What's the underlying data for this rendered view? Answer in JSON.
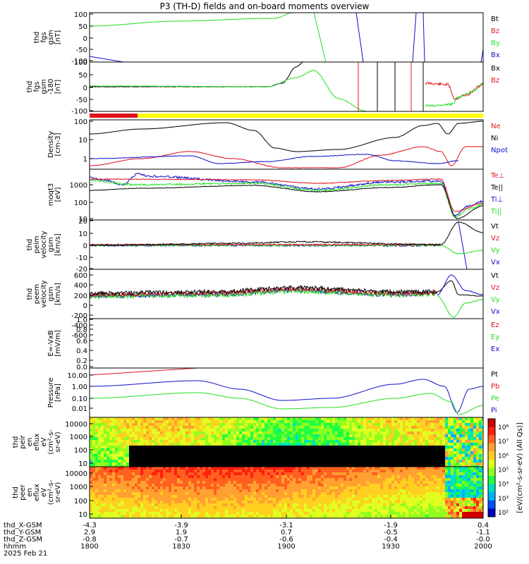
{
  "title": "P3 (TH-D) fields and on-board moments overview",
  "date_label": "2025 Feb 21",
  "colors": {
    "black": "#000000",
    "red": "#e0141e",
    "green": "#20e020",
    "blue": "#1010c8",
    "yellow": "#ffff00"
  },
  "x_axis": {
    "tick_times": [
      "1800",
      "1830",
      "1900",
      "1930",
      "2000"
    ],
    "rows": [
      {
        "label": "thd_X-GSM",
        "values": [
          "-4.3",
          "-3.9",
          "-3.1",
          "-1.9",
          "0.4"
        ]
      },
      {
        "label": "thd_Y-GSM",
        "values": [
          "2.9",
          "1.9",
          "0.7",
          "-0.5",
          "-1.1"
        ]
      },
      {
        "label": "thd_Z-GSM",
        "values": [
          "-0.8",
          "-0.7",
          "-0.6",
          "-0.4",
          "-0.0"
        ]
      },
      {
        "label": "hhmm",
        "values": [
          "1800",
          "1830",
          "1900",
          "1930",
          "2000"
        ]
      }
    ]
  },
  "panels": [
    {
      "ylabel": [
        "thd",
        "fgs",
        "gsm",
        "[nT]"
      ],
      "ticks": [
        "100",
        "50",
        "0",
        "-50",
        "-100"
      ],
      "legend": [
        {
          "text": "Bt",
          "color": "black"
        },
        {
          "text": "Bz",
          "color": "red"
        },
        {
          "text": "By",
          "color": "green"
        },
        {
          "text": "Bx",
          "color": "blue"
        }
      ]
    },
    {
      "ylabel": [
        "thd",
        "fgs",
        "gsm",
        "-180",
        "[nT]"
      ],
      "ticks": [
        "100",
        "50",
        "0",
        "-50",
        "-100"
      ],
      "legend": [
        {
          "text": "Bx",
          "color": "black"
        },
        {
          "text": "Bz",
          "color": "red"
        }
      ]
    },
    {
      "ylabel": [
        "Density",
        "[cm-3]"
      ],
      "ticks": [
        "100",
        "10",
        "1"
      ],
      "legend": [
        {
          "text": "Ne",
          "color": "red"
        },
        {
          "text": "Ni",
          "color": "black"
        },
        {
          "text": "Npot",
          "color": "blue"
        }
      ]
    },
    {
      "ylabel": [
        "moqt3",
        "[eV]"
      ],
      "ticks": [
        "1000",
        "100",
        "10"
      ],
      "legend": [
        {
          "text": "Te⊥",
          "color": "red"
        },
        {
          "text": "Te||",
          "color": "black"
        },
        {
          "text": "Ti⊥",
          "color": "blue"
        },
        {
          "text": "Ti||",
          "color": "green"
        }
      ]
    },
    {
      "ylabel": [
        "thd",
        "peim",
        "velocity",
        "gsm",
        "[km/s]"
      ],
      "ticks": [
        "20",
        "10",
        "0",
        "-10",
        "-20"
      ],
      "legend": [
        {
          "text": "Vt",
          "color": "black"
        },
        {
          "text": "Vz",
          "color": "red"
        },
        {
          "text": "Vy",
          "color": "green"
        },
        {
          "text": "Vx",
          "color": "blue"
        }
      ]
    },
    {
      "ylabel": [
        "thd",
        "peem",
        "velocity",
        "gsm",
        "[km/s]"
      ],
      "ticks": [
        "600",
        "400",
        "200",
        "0",
        "-200",
        "-400",
        "-600"
      ],
      "legend": [
        {
          "text": "Vt",
          "color": "black"
        },
        {
          "text": "Vz",
          "color": "red"
        },
        {
          "text": "Vy",
          "color": "green"
        },
        {
          "text": "Vx",
          "color": "blue"
        }
      ]
    },
    {
      "ylabel": [
        "E=-VxB",
        "[mV/m]"
      ],
      "ticks": [
        "1.0",
        "0.8",
        "0.6",
        "0.4",
        "0.2",
        "0.0"
      ],
      "legend": [
        {
          "text": "Ez",
          "color": "red"
        },
        {
          "text": "Ey",
          "color": "green"
        },
        {
          "text": "Ex",
          "color": "blue"
        }
      ]
    },
    {
      "ylabel": [
        "Pressure",
        "[nPa]"
      ],
      "ticks": [
        "10.00",
        "1.00",
        "0.10",
        "0.01"
      ],
      "legend": [
        {
          "text": "Pt",
          "color": "black"
        },
        {
          "text": "Pb",
          "color": "red"
        },
        {
          "text": "Pe",
          "color": "green"
        },
        {
          "text": "Pi",
          "color": "blue"
        }
      ]
    },
    {
      "ylabel": [
        "thd",
        "peir",
        "en",
        "eflux",
        "eV",
        "(cm²-s-",
        "sr-eV)"
      ],
      "ticks": [
        "10000",
        "1000",
        "100",
        "10"
      ],
      "legend": []
    },
    {
      "ylabel": [
        "thd",
        "peer",
        "en",
        "eflux",
        "eV",
        "(cm²-s-",
        "sr-eV)"
      ],
      "ticks": [
        "10000",
        "1000",
        "100",
        "10"
      ],
      "legend": []
    }
  ],
  "colorbar": {
    "label": "[eV/(cm²-s-sr-eV) (All Qs)]",
    "ticks": [
      "10⁸",
      "10⁷",
      "10⁶",
      "10⁵",
      "10⁴",
      "10³",
      "10²"
    ]
  },
  "chart_data": {
    "type": "line",
    "title": "P3 (TH-D) fields and on-board moments overview",
    "x": [
      "1800",
      "1830",
      "1900",
      "1930",
      "2000"
    ],
    "x_range": [
      "1800",
      "2000"
    ],
    "panels": [
      {
        "series": [
          {
            "name": "By",
            "values": [
              46,
              60,
              120,
              null,
              null
            ]
          },
          {
            "name": "Bx",
            "values": [
              -80,
              -120,
              -200,
              200,
              -100
            ]
          }
        ],
        "ylim": [
          -100,
          100
        ]
      },
      {
        "series": [
          {
            "name": "Bx",
            "values": [
              0,
              0,
              2,
              200,
              -20
            ]
          },
          {
            "name": "Bz",
            "values": [
              -2,
              -2,
              0,
              -20,
              -10
            ]
          }
        ],
        "ylim": [
          -120,
          100
        ]
      },
      {
        "series": [
          {
            "name": "Ni",
            "values": [
              30,
              80,
              2.2,
              20,
              100
            ]
          },
          {
            "name": "Ne",
            "values": [
              0.6,
              1.8,
              1.0,
              1.5,
              0.8
            ]
          },
          {
            "name": "Npot",
            "values": [
              1.0,
              1.3,
              0.6,
              1.2,
              0.7
            ]
          }
        ],
        "ylim": [
          0.5,
          100
        ],
        "log": true
      },
      {
        "series": [
          {
            "name": "Ti⊥",
            "values": [
              1800,
              1200,
              1000,
              1100,
              40
            ]
          },
          {
            "name": "Te||",
            "values": [
              600,
              800,
              700,
              900,
              30
            ]
          }
        ],
        "ylim": [
          10,
          3000
        ],
        "log": true
      },
      {
        "series": [
          {
            "name": "Vx",
            "values": [
              0,
              0,
              0,
              0,
              -20
            ]
          },
          {
            "name": "Vt",
            "values": [
              0,
              0,
              2,
              0,
              20
            ]
          }
        ],
        "ylim": [
          -20,
          20
        ]
      },
      {
        "series": [
          {
            "name": "Vt",
            "values": [
              50,
              50,
              150,
              60,
              400
            ]
          },
          {
            "name": "Vy",
            "values": [
              -50,
              -50,
              -100,
              -50,
              -500
            ]
          }
        ],
        "ylim": [
          -600,
          700
        ]
      },
      {
        "series": [],
        "ylim": [
          0,
          1
        ]
      },
      {
        "series": [
          {
            "name": "Pi",
            "values": [
              1.3,
              2.5,
              0.14,
              1.0,
              0.02
            ]
          },
          {
            "name": "Pe",
            "values": [
              0.1,
              0.25,
              0.03,
              0.1,
              0.02
            ]
          },
          {
            "name": "Pb",
            "values": [
              10,
              25,
              null,
              null,
              null
            ]
          }
        ],
        "ylim": [
          0.003,
          20
        ],
        "log": true
      }
    ]
  }
}
